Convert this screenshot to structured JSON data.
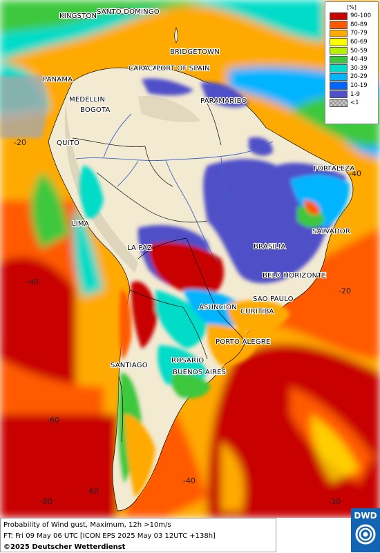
{
  "legend": {
    "unit": "[%]",
    "items": [
      {
        "label": "90-100",
        "color": "#c80000"
      },
      {
        "label": "80-89",
        "color": "#ff5a00"
      },
      {
        "label": "70-79",
        "color": "#ffaa00"
      },
      {
        "label": "60-69",
        "color": "#ffff00"
      },
      {
        "label": "50-59",
        "color": "#b4f000"
      },
      {
        "label": "40-49",
        "color": "#3cc83c"
      },
      {
        "label": "30-39",
        "color": "#00dcc8"
      },
      {
        "label": "20-29",
        "color": "#00b4ff"
      },
      {
        "label": "10-19",
        "color": "#0064ff"
      },
      {
        "label": "1-9",
        "color": "#5050c8"
      },
      {
        "label": "<1",
        "color": "#c8c8c8"
      }
    ]
  },
  "cities": [
    {
      "name": "KINGSTON"
    },
    {
      "name": "SANTO DOMINGO"
    },
    {
      "name": "BRIDGETOWN"
    },
    {
      "name": "CARACAS"
    },
    {
      "name": "PORT OF SPAIN"
    },
    {
      "name": "PANAMA"
    },
    {
      "name": "MEDELLIN"
    },
    {
      "name": "BOGOTA"
    },
    {
      "name": "PARAMARIBO"
    },
    {
      "name": "QUITO"
    },
    {
      "name": "FORTALEZA"
    },
    {
      "name": "LIMA"
    },
    {
      "name": "SALVADOR"
    },
    {
      "name": "BRASILIA"
    },
    {
      "name": "LA PAZ"
    },
    {
      "name": "BELO HORIZONTE"
    },
    {
      "name": "SAO PAULO"
    },
    {
      "name": "ASUNCION"
    },
    {
      "name": "CURITIBA"
    },
    {
      "name": "PORTO ALEGRE"
    },
    {
      "name": "SANTIAGO"
    },
    {
      "name": "ROSARIO"
    },
    {
      "name": "BUENOS AIRES"
    }
  ],
  "grid_labels": [
    "-20",
    "-40",
    "-60",
    "-40",
    "-20",
    "-80",
    "-60",
    "-40",
    "-30"
  ],
  "footer": {
    "line1": "Probability of Wind gust, Maximum, 12h >10m/s",
    "line2": "FT: Fri 09 May 06 UTC [ICON EPS 2025 May 03 12UTC +138h]",
    "copyright": "©2025 Deutscher Wetterdienst"
  },
  "logo": {
    "brand": "DWD"
  }
}
